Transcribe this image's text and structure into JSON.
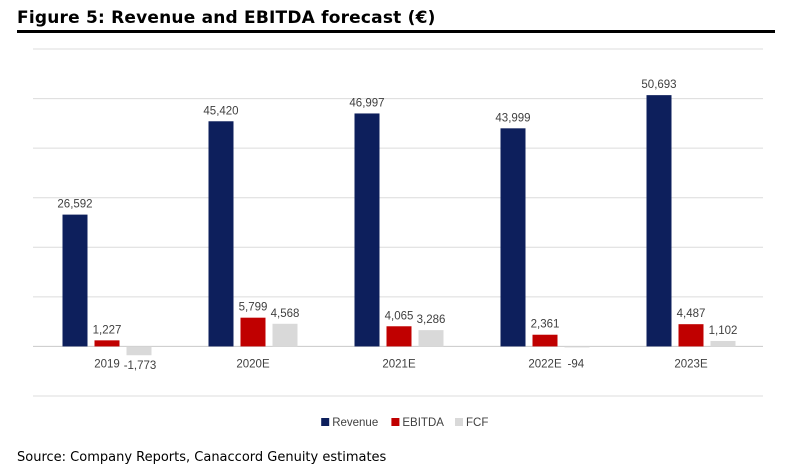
{
  "header": {
    "title": "Figure 5: Revenue and EBITDA forecast (€)"
  },
  "footer": {
    "source": "Source: Company Reports, Canaccord Genuity estimates"
  },
  "chart_data": {
    "type": "bar",
    "title": "Figure 5: Revenue and EBITDA forecast (€)",
    "xlabel": "",
    "ylabel": "",
    "ylim": [
      -10000,
      60000
    ],
    "grid": true,
    "legend_position": "bottom",
    "categories": [
      "2019",
      "2020E",
      "2021E",
      "2022E",
      "2023E"
    ],
    "series": [
      {
        "name": "Revenue",
        "color": "#0d1f5c",
        "values": [
          26592,
          45420,
          46997,
          43999,
          50693
        ],
        "labels": [
          "26,592",
          "45,420",
          "46,997",
          "43,999",
          "50,693"
        ]
      },
      {
        "name": "EBITDA",
        "color": "#c00000",
        "values": [
          1227,
          5799,
          4065,
          2361,
          4487
        ],
        "labels": [
          "1,227",
          "5,799",
          "4,065",
          "2,361",
          "4,487"
        ]
      },
      {
        "name": "FCF",
        "color": "#d9d9d9",
        "values": [
          -1773,
          4568,
          3286,
          -94,
          1102
        ],
        "labels": [
          "-1,773",
          "4,568",
          "3,286",
          "-94",
          "1,102"
        ]
      }
    ]
  }
}
